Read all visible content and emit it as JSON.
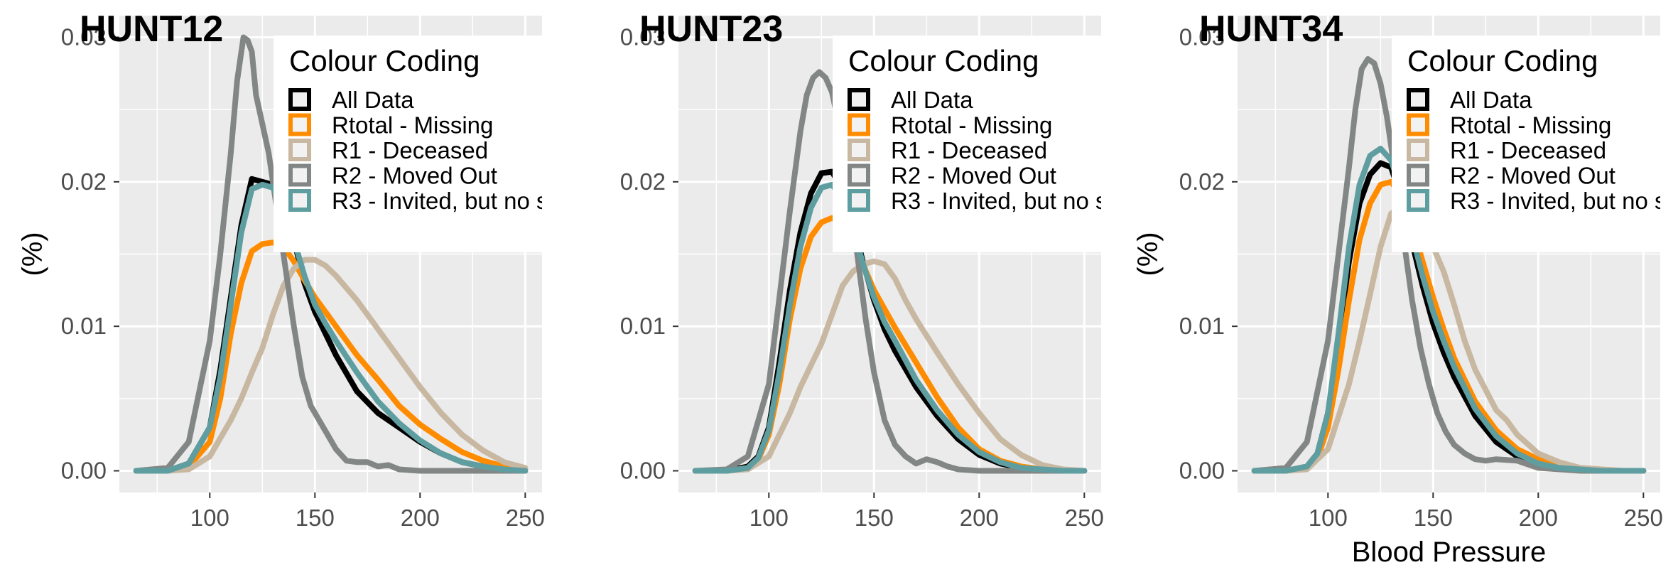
{
  "chart_data": [
    {
      "type": "line",
      "title": "HUNT12",
      "xlabel": "",
      "ylabel": "(%)",
      "xlim": [
        57,
        258
      ],
      "ylim": [
        -0.0015,
        0.0315
      ],
      "xticks": [
        100,
        150,
        200,
        250
      ],
      "yticks": [
        "0.00",
        "0.01",
        "0.02",
        "0.03"
      ],
      "grid": true,
      "legend": {
        "title": "Colour Coding",
        "placement": "top-right",
        "entries": [
          "All Data",
          "Rtotal - Missing",
          "R1 - Deceased",
          "R2 - Moved Out",
          "R3 - Invited, but no s"
        ]
      },
      "series": [
        {
          "name": "All Data",
          "color": "#000000",
          "x": [
            65,
            80,
            90,
            100,
            105,
            110,
            115,
            120,
            125,
            130,
            135,
            140,
            145,
            150,
            155,
            160,
            170,
            180,
            190,
            200,
            210,
            220,
            230,
            240,
            250
          ],
          "y": [
            0,
            0,
            0.0005,
            0.003,
            0.007,
            0.012,
            0.017,
            0.0202,
            0.02,
            0.0198,
            0.0185,
            0.016,
            0.013,
            0.011,
            0.0095,
            0.008,
            0.0055,
            0.004,
            0.003,
            0.002,
            0.0012,
            0.0006,
            0.0003,
            0.0001,
            0
          ]
        },
        {
          "name": "Rtotal - Missing",
          "color": "#ff8c00",
          "x": [
            65,
            80,
            90,
            100,
            105,
            110,
            115,
            120,
            125,
            130,
            135,
            140,
            145,
            150,
            155,
            160,
            170,
            180,
            190,
            200,
            210,
            220,
            230,
            240,
            250
          ],
          "y": [
            0,
            0,
            0.0003,
            0.002,
            0.005,
            0.0095,
            0.013,
            0.0152,
            0.0157,
            0.0158,
            0.0155,
            0.0145,
            0.0132,
            0.012,
            0.011,
            0.01,
            0.008,
            0.0063,
            0.0045,
            0.0032,
            0.0022,
            0.0013,
            0.0007,
            0.0003,
            0.0001
          ]
        },
        {
          "name": "R1 - Deceased",
          "color": "#c8b8a2",
          "x": [
            65,
            80,
            90,
            100,
            110,
            115,
            120,
            125,
            130,
            135,
            140,
            145,
            150,
            155,
            160,
            170,
            180,
            190,
            200,
            210,
            220,
            230,
            240,
            250
          ],
          "y": [
            0,
            0,
            0.0001,
            0.001,
            0.0035,
            0.005,
            0.0068,
            0.0085,
            0.0108,
            0.0128,
            0.014,
            0.0146,
            0.0146,
            0.0142,
            0.0135,
            0.0118,
            0.0098,
            0.0078,
            0.0058,
            0.004,
            0.0025,
            0.0014,
            0.0006,
            0.0002
          ]
        },
        {
          "name": "R2 - Moved Out",
          "color": "#828786",
          "x": [
            65,
            80,
            90,
            100,
            105,
            110,
            113,
            116,
            118,
            120,
            122,
            125,
            128,
            132,
            136,
            140,
            144,
            148,
            152,
            156,
            160,
            165,
            170,
            175,
            180,
            185,
            190,
            200,
            220,
            250
          ],
          "y": [
            0,
            0.0002,
            0.002,
            0.009,
            0.015,
            0.022,
            0.027,
            0.03,
            0.0298,
            0.029,
            0.026,
            0.024,
            0.022,
            0.018,
            0.014,
            0.01,
            0.0065,
            0.0045,
            0.0035,
            0.0025,
            0.0015,
            0.0007,
            0.0006,
            0.0006,
            0.0003,
            0.0004,
            0.0001,
            0,
            0,
            0
          ]
        },
        {
          "name": "R3 - Invited, but no s",
          "color": "#5f9ea0",
          "x": [
            65,
            80,
            90,
            100,
            105,
            110,
            115,
            120,
            125,
            130,
            135,
            140,
            145,
            150,
            155,
            160,
            170,
            180,
            190,
            200,
            210,
            220,
            230,
            240,
            250
          ],
          "y": [
            0,
            0,
            0.0005,
            0.003,
            0.0065,
            0.0115,
            0.0165,
            0.0195,
            0.0198,
            0.0196,
            0.0182,
            0.016,
            0.0135,
            0.0115,
            0.0102,
            0.009,
            0.0068,
            0.0048,
            0.0033,
            0.0021,
            0.0012,
            0.0006,
            0.0003,
            0.0001,
            0
          ]
        }
      ]
    },
    {
      "type": "line",
      "title": "HUNT23",
      "xlabel": "",
      "ylabel": "",
      "xlim": [
        57,
        258
      ],
      "ylim": [
        -0.0015,
        0.0315
      ],
      "xticks": [
        100,
        150,
        200,
        250
      ],
      "yticks": [
        "0.00",
        "0.01",
        "0.02",
        "0.03"
      ],
      "grid": true,
      "legend": {
        "title": "Colour Coding",
        "placement": "top-right",
        "entries": [
          "All Data",
          "Rtotal - Missing",
          "R1 - Deceased",
          "R2 - Moved Out",
          "R3 - Invited, but no s"
        ]
      },
      "series": [
        {
          "name": "All Data",
          "color": "#000000",
          "x": [
            65,
            80,
            90,
            95,
            100,
            105,
            110,
            115,
            120,
            125,
            130,
            135,
            140,
            145,
            150,
            155,
            160,
            170,
            180,
            190,
            200,
            210,
            220,
            230,
            240,
            250
          ],
          "y": [
            0,
            0,
            0.0003,
            0.001,
            0.003,
            0.0075,
            0.0125,
            0.0165,
            0.0192,
            0.0206,
            0.0207,
            0.0195,
            0.0172,
            0.0143,
            0.0118,
            0.0098,
            0.0083,
            0.0058,
            0.0038,
            0.0022,
            0.0011,
            0.0005,
            0.0002,
            0.0001,
            0,
            0
          ]
        },
        {
          "name": "Rtotal - Missing",
          "color": "#ff8c00",
          "x": [
            65,
            80,
            90,
            95,
            100,
            105,
            110,
            115,
            120,
            125,
            130,
            135,
            140,
            145,
            150,
            155,
            160,
            170,
            180,
            190,
            200,
            210,
            220,
            230,
            240,
            250
          ],
          "y": [
            0,
            0,
            0.0002,
            0.0008,
            0.0025,
            0.006,
            0.0105,
            0.014,
            0.0162,
            0.0172,
            0.0175,
            0.0172,
            0.016,
            0.0142,
            0.0125,
            0.0112,
            0.0099,
            0.0075,
            0.0051,
            0.003,
            0.0015,
            0.0007,
            0.0003,
            0.0001,
            0,
            0
          ]
        },
        {
          "name": "R1 - Deceased",
          "color": "#c8b8a2",
          "x": [
            65,
            80,
            90,
            100,
            110,
            115,
            120,
            125,
            130,
            135,
            140,
            145,
            150,
            155,
            160,
            165,
            170,
            180,
            190,
            200,
            210,
            220,
            230,
            240,
            250
          ],
          "y": [
            0,
            0,
            0.0001,
            0.001,
            0.004,
            0.0058,
            0.0073,
            0.0088,
            0.0108,
            0.0128,
            0.0138,
            0.0143,
            0.0145,
            0.0143,
            0.0133,
            0.0118,
            0.0105,
            0.0082,
            0.006,
            0.004,
            0.0022,
            0.0011,
            0.0004,
            0.0001,
            0
          ]
        },
        {
          "name": "R2 - Moved Out",
          "color": "#828786",
          "x": [
            65,
            80,
            90,
            100,
            105,
            110,
            115,
            118,
            121,
            124,
            127,
            130,
            134,
            138,
            142,
            146,
            150,
            155,
            160,
            165,
            170,
            175,
            180,
            185,
            190,
            200,
            220,
            250
          ],
          "y": [
            0,
            0.0001,
            0.001,
            0.006,
            0.012,
            0.018,
            0.0235,
            0.026,
            0.0272,
            0.0276,
            0.0272,
            0.0262,
            0.0235,
            0.0195,
            0.015,
            0.0105,
            0.0068,
            0.0035,
            0.0018,
            0.001,
            0.0005,
            0.0008,
            0.0006,
            0.0003,
            0.0001,
            0,
            0,
            0
          ]
        },
        {
          "name": "R3 - Invited, but no s",
          "color": "#5f9ea0",
          "x": [
            65,
            80,
            90,
            95,
            100,
            105,
            110,
            115,
            120,
            125,
            130,
            135,
            140,
            145,
            150,
            155,
            160,
            170,
            180,
            190,
            200,
            210,
            220,
            230,
            240,
            250
          ],
          "y": [
            0,
            0,
            0.0002,
            0.0009,
            0.0028,
            0.0068,
            0.0115,
            0.0155,
            0.0182,
            0.0196,
            0.0198,
            0.0189,
            0.0168,
            0.0142,
            0.012,
            0.0103,
            0.009,
            0.0063,
            0.0042,
            0.0025,
            0.0013,
            0.0006,
            0.0002,
            0.0001,
            0,
            0
          ]
        }
      ]
    },
    {
      "type": "line",
      "title": "HUNT34",
      "xlabel": "Blood Pressure",
      "ylabel": "(%)",
      "xlim": [
        57,
        258
      ],
      "ylim": [
        -0.0015,
        0.0315
      ],
      "xticks": [
        100,
        150,
        200,
        250
      ],
      "yticks": [
        "0.00",
        "0.01",
        "0.02",
        "0.03"
      ],
      "grid": true,
      "legend": {
        "title": "Colour Coding",
        "placement": "top-right",
        "entries": [
          "All Data",
          "Rtotal - Missing",
          "R1 - Deceased",
          "R2 - Moved Out",
          "R3 - Invited, but no s"
        ]
      },
      "series": [
        {
          "name": "All Data",
          "color": "#000000",
          "x": [
            65,
            80,
            90,
            95,
            100,
            105,
            110,
            115,
            120,
            125,
            130,
            135,
            140,
            145,
            150,
            155,
            160,
            170,
            180,
            190,
            200,
            210,
            220,
            230,
            240,
            250
          ],
          "y": [
            0,
            0,
            0.0003,
            0.0012,
            0.004,
            0.009,
            0.0145,
            0.0185,
            0.0205,
            0.0213,
            0.021,
            0.0188,
            0.0158,
            0.0128,
            0.0102,
            0.0082,
            0.0065,
            0.0038,
            0.002,
            0.001,
            0.0004,
            0.0002,
            0.0001,
            0,
            0,
            0
          ]
        },
        {
          "name": "Rtotal - Missing",
          "color": "#ff8c00",
          "x": [
            65,
            80,
            90,
            95,
            100,
            105,
            110,
            115,
            120,
            125,
            130,
            135,
            140,
            145,
            150,
            155,
            160,
            170,
            180,
            190,
            200,
            210,
            220,
            230,
            240,
            250
          ],
          "y": [
            0,
            0,
            0.0002,
            0.0009,
            0.003,
            0.007,
            0.0118,
            0.016,
            0.0185,
            0.0198,
            0.02,
            0.019,
            0.017,
            0.0145,
            0.012,
            0.0098,
            0.0078,
            0.0048,
            0.0028,
            0.0015,
            0.0008,
            0.0004,
            0.0002,
            0.0001,
            0,
            0
          ]
        },
        {
          "name": "R1 - Deceased",
          "color": "#c8b8a2",
          "x": [
            65,
            80,
            90,
            100,
            110,
            115,
            120,
            125,
            130,
            135,
            140,
            145,
            150,
            155,
            160,
            165,
            170,
            180,
            185,
            190,
            200,
            210,
            220,
            230,
            240,
            250
          ],
          "y": [
            0,
            0,
            0.0001,
            0.0015,
            0.006,
            0.009,
            0.0122,
            0.0155,
            0.0178,
            0.0183,
            0.0178,
            0.0168,
            0.0155,
            0.0138,
            0.0115,
            0.009,
            0.007,
            0.0042,
            0.0035,
            0.0025,
            0.0012,
            0.0006,
            0.0002,
            0.0001,
            0,
            0
          ]
        },
        {
          "name": "R2 - Moved Out",
          "color": "#828786",
          "x": [
            65,
            80,
            90,
            100,
            105,
            110,
            113,
            116,
            119,
            122,
            125,
            128,
            132,
            136,
            140,
            144,
            148,
            152,
            156,
            160,
            165,
            170,
            175,
            180,
            190,
            200,
            220,
            250
          ],
          "y": [
            0,
            0.0002,
            0.002,
            0.009,
            0.015,
            0.021,
            0.025,
            0.0278,
            0.0285,
            0.0282,
            0.0268,
            0.0245,
            0.0205,
            0.016,
            0.0118,
            0.0085,
            0.006,
            0.004,
            0.0027,
            0.0018,
            0.0012,
            0.0008,
            0.0007,
            0.0008,
            0.0007,
            0.0002,
            0,
            0
          ]
        },
        {
          "name": "R3 - Invited, but no s",
          "color": "#5f9ea0",
          "x": [
            65,
            80,
            90,
            95,
            100,
            105,
            110,
            115,
            120,
            125,
            130,
            135,
            140,
            145,
            150,
            155,
            160,
            170,
            180,
            190,
            200,
            210,
            220,
            230,
            240,
            250
          ],
          "y": [
            0,
            0,
            0.0003,
            0.0012,
            0.004,
            0.0095,
            0.0155,
            0.0198,
            0.0218,
            0.0223,
            0.0215,
            0.0193,
            0.0163,
            0.0135,
            0.011,
            0.009,
            0.0072,
            0.0043,
            0.0024,
            0.0012,
            0.0005,
            0.0002,
            0.0001,
            0,
            0,
            0
          ]
        }
      ]
    }
  ]
}
